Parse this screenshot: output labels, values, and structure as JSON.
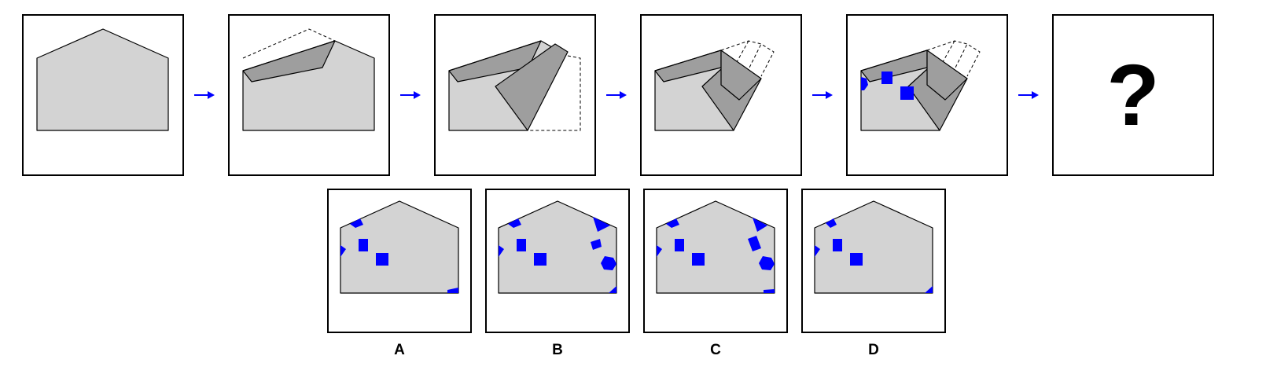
{
  "question_mark": "?",
  "colors": {
    "paper": "#d3d3d3",
    "fold": "#9e9e9e",
    "holes": "#0000ff",
    "arrows": "#0000ff"
  },
  "steps": [
    "step-1-unfolded-paper",
    "step-2-first-fold",
    "step-3-second-fold",
    "step-4-third-fold",
    "step-5-punched",
    "step-6-unknown"
  ],
  "options": [
    {
      "label": "A"
    },
    {
      "label": "B"
    },
    {
      "label": "C"
    },
    {
      "label": "D"
    }
  ]
}
